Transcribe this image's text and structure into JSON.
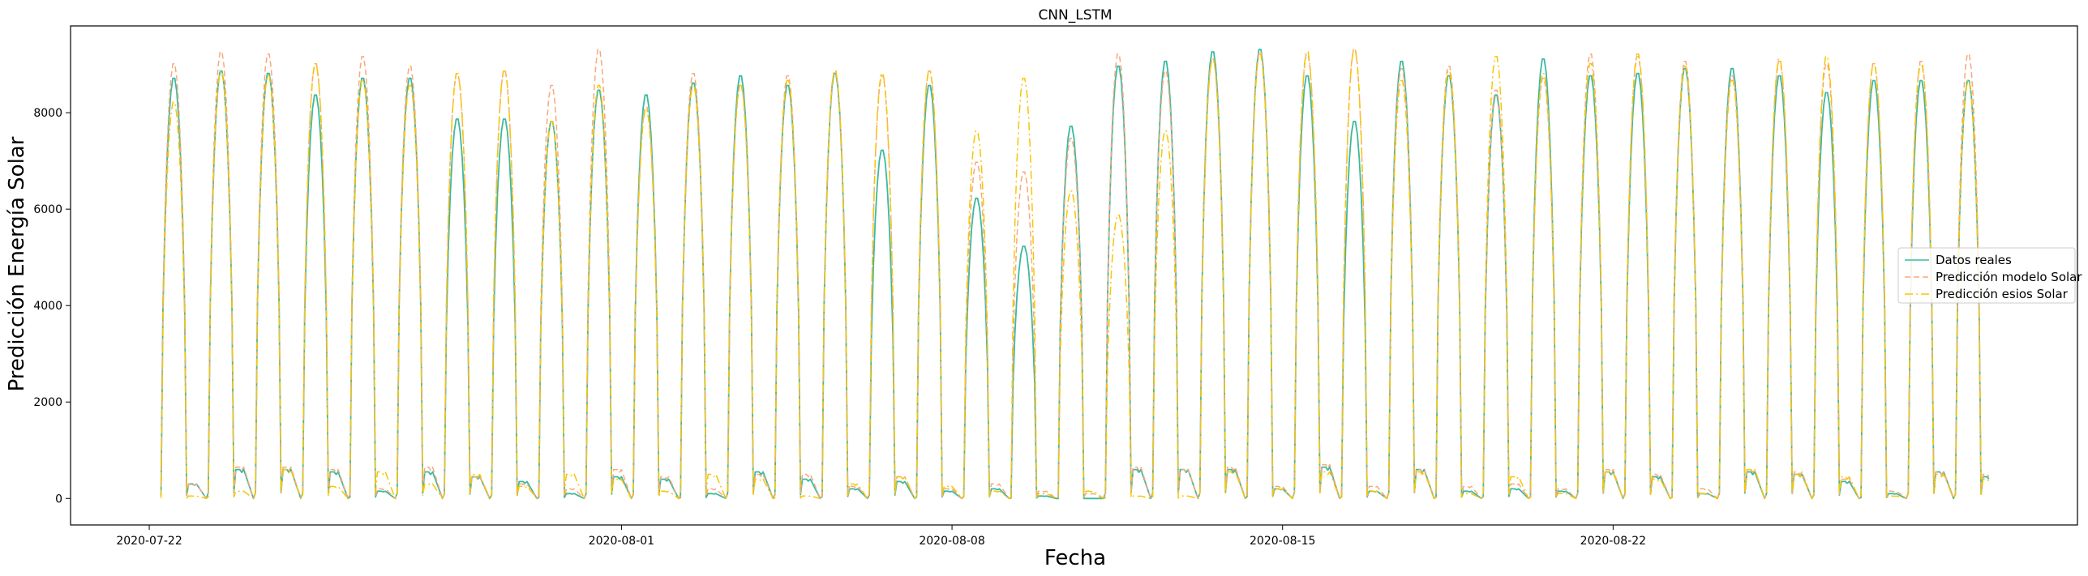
{
  "chart_data": {
    "type": "line",
    "title": "CNN_LSTM",
    "xlabel": "Fecha",
    "ylabel": "Predicción Energía Solar",
    "x_range": [
      "2020-07-20T08:00",
      "2020-08-31T20:00"
    ],
    "ylim": [
      -550,
      9800
    ],
    "x_ticks": [
      "2020-07-22",
      "2020-08-01",
      "2020-08-08",
      "2020-08-15",
      "2020-08-22"
    ],
    "y_ticks": [
      0,
      2000,
      4000,
      6000,
      8000
    ],
    "grid": false,
    "legend_position": "center-right",
    "x_start": "2020-07-22",
    "series": [
      {
        "name": "Datos reales",
        "color": "#3cb9a0",
        "style": "solid",
        "daily_peaks": [
          8750,
          8900,
          8850,
          8400,
          8750,
          8750,
          7900,
          7900,
          7850,
          8500,
          8400,
          8650,
          8800,
          8600,
          8850,
          7250,
          8600,
          6250,
          5250,
          7750,
          9000,
          9100,
          9300,
          9350,
          8800,
          7850,
          9100,
          8800,
          8400,
          9150,
          8800,
          8850,
          8950,
          8950,
          8800,
          8450,
          8700,
          8700,
          8700
        ],
        "daily_troughs": [
          300,
          600,
          600,
          550,
          150,
          550,
          450,
          350,
          100,
          450,
          400,
          100,
          550,
          400,
          200,
          350,
          150,
          200,
          50,
          0,
          600,
          600,
          600,
          200,
          650,
          150,
          600,
          150,
          200,
          150,
          550,
          450,
          100,
          550,
          500,
          350,
          100,
          550,
          450
        ]
      },
      {
        "name": "Predicción modelo Solar",
        "color": "#f9a87c",
        "style": "dashed",
        "daily_peaks": [
          9050,
          9300,
          9250,
          9050,
          9200,
          9000,
          8850,
          8900,
          8600,
          9350,
          8150,
          8850,
          8600,
          8800,
          8900,
          8800,
          8900,
          7000,
          6800,
          7500,
          9250,
          8900,
          9150,
          9300,
          9250,
          9350,
          8950,
          9000,
          8500,
          8750,
          9250,
          9200,
          9100,
          8800,
          9100,
          9050,
          9050,
          9100,
          9250
        ],
        "daily_troughs": [
          300,
          650,
          650,
          600,
          200,
          650,
          450,
          300,
          200,
          600,
          450,
          200,
          500,
          500,
          250,
          450,
          200,
          300,
          150,
          100,
          650,
          600,
          650,
          250,
          700,
          250,
          600,
          250,
          300,
          200,
          600,
          500,
          200,
          600,
          550,
          400,
          150,
          550,
          500
        ]
      },
      {
        "name": "Predicción esios Solar",
        "color": "#f7c600",
        "style": "dashdot",
        "daily_peaks": [
          8250,
          8900,
          8800,
          9050,
          8700,
          8600,
          8850,
          8900,
          7850,
          8600,
          8100,
          8600,
          8600,
          8700,
          8900,
          8850,
          8900,
          7650,
          8750,
          6400,
          5900,
          7650,
          9150,
          9250,
          9300,
          9350,
          8700,
          8900,
          9200,
          8850,
          9050,
          9250,
          9000,
          8700,
          9150,
          9200,
          9050,
          9050,
          8700
        ],
        "daily_troughs": [
          50,
          150,
          600,
          250,
          550,
          300,
          500,
          250,
          500,
          400,
          150,
          500,
          400,
          50,
          300,
          450,
          250,
          150,
          100,
          150,
          50,
          50,
          550,
          200,
          550,
          150,
          550,
          100,
          450,
          100,
          550,
          400,
          100,
          600,
          500,
          450,
          50,
          500,
          400
        ]
      }
    ]
  }
}
